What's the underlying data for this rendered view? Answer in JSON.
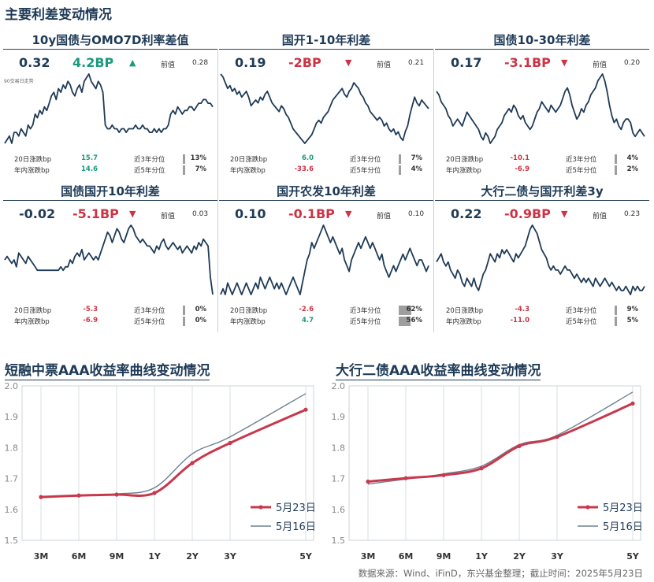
{
  "report": {
    "section1_title": "主要利差变动情况",
    "chart2_title": "短融中票AAA收益率曲线变动情况",
    "chart3_title": "大行二债AAA收益率曲线变动情况",
    "footer": "数据来源：Wind、iFinD，东兴基金整理；截止时间：2025年5月23日",
    "colors": {
      "up": "#1a9a7e",
      "down": "#cc3344",
      "line": "#1f3b57",
      "curve_new": "#c8384d",
      "curve_old": "#6f8191"
    }
  },
  "panels": [
    {
      "title": "10y国债与OMO7D利率差值",
      "current": "0.32",
      "change": "4.2BP",
      "direction": "up",
      "prev_label": "前值",
      "prev": "0.28",
      "note": "90交易日走势",
      "stats": {
        "l1": "20日涨跌bp",
        "v1": "15.7",
        "l2": "年内涨跌bp",
        "v2": "14.6",
        "q1": "近3年分位",
        "p1": "13%",
        "q2": "近5年分位",
        "p2": "7%"
      },
      "pct": [
        13,
        7
      ],
      "series": [
        0.22,
        0.23,
        0.24,
        0.22,
        0.25,
        0.25,
        0.24,
        0.26,
        0.25,
        0.24,
        0.27,
        0.26,
        0.27,
        0.3,
        0.29,
        0.31,
        0.3,
        0.32,
        0.31,
        0.33,
        0.35,
        0.36,
        0.34,
        0.37,
        0.36,
        0.38,
        0.37,
        0.39,
        0.38,
        0.36,
        0.35,
        0.37,
        0.38,
        0.36,
        0.39,
        0.4,
        0.41,
        0.39,
        0.38,
        0.37,
        0.39,
        0.38,
        0.36,
        0.27,
        0.26,
        0.26,
        0.27,
        0.26,
        0.26,
        0.25,
        0.26,
        0.26,
        0.25,
        0.26,
        0.26,
        0.26,
        0.27,
        0.26,
        0.26,
        0.27,
        0.26,
        0.26,
        0.25,
        0.25,
        0.26,
        0.25,
        0.26,
        0.25,
        0.26,
        0.26,
        0.27,
        0.3,
        0.31,
        0.3,
        0.32,
        0.31,
        0.3,
        0.31,
        0.31,
        0.32,
        0.32,
        0.31,
        0.32,
        0.33,
        0.33,
        0.34,
        0.34,
        0.33,
        0.33,
        0.32
      ]
    },
    {
      "title": "国开1-10年利差",
      "current": "0.19",
      "change": "-2BP",
      "direction": "down",
      "prev_label": "前值",
      "prev": "0.21",
      "stats": {
        "l1": "20日涨跌bp",
        "v1": "6.0",
        "l2": "年内涨跌bp",
        "v2": "-33.6",
        "q1": "近3年分位",
        "p1": "7%",
        "q2": "近5年分位",
        "p2": "4%"
      },
      "pct": [
        7,
        4
      ],
      "series": [
        0.41,
        0.4,
        0.38,
        0.36,
        0.37,
        0.35,
        0.36,
        0.34,
        0.35,
        0.33,
        0.34,
        0.35,
        0.33,
        0.3,
        0.31,
        0.32,
        0.31,
        0.33,
        0.32,
        0.34,
        0.35,
        0.33,
        0.31,
        0.3,
        0.29,
        0.28,
        0.3,
        0.29,
        0.27,
        0.26,
        0.24,
        0.22,
        0.21,
        0.2,
        0.19,
        0.18,
        0.17,
        0.18,
        0.19,
        0.2,
        0.22,
        0.24,
        0.25,
        0.24,
        0.26,
        0.27,
        0.28,
        0.3,
        0.32,
        0.33,
        0.34,
        0.35,
        0.36,
        0.34,
        0.33,
        0.35,
        0.36,
        0.38,
        0.37,
        0.36,
        0.34,
        0.33,
        0.31,
        0.3,
        0.28,
        0.27,
        0.26,
        0.25,
        0.26,
        0.25,
        0.23,
        0.24,
        0.22,
        0.21,
        0.22,
        0.2,
        0.21,
        0.19,
        0.18,
        0.21,
        0.23,
        0.27,
        0.3,
        0.33,
        0.31,
        0.3,
        0.32,
        0.31,
        0.3,
        0.29
      ]
    },
    {
      "title": "国债10-30年利差",
      "current": "0.17",
      "change": "-3.1BP",
      "direction": "down",
      "prev_label": "前值",
      "prev": "0.20",
      "stats": {
        "l1": "20日涨跌bp",
        "v1": "-10.1",
        "l2": "年内涨跌bp",
        "v2": "-6.9",
        "q1": "近3年分位",
        "p1": "4%",
        "q2": "近5年分位",
        "p2": "2%"
      },
      "pct": [
        4,
        2
      ],
      "series": [
        0.3,
        0.29,
        0.27,
        0.26,
        0.25,
        0.23,
        0.22,
        0.2,
        0.21,
        0.22,
        0.21,
        0.2,
        0.22,
        0.24,
        0.23,
        0.22,
        0.21,
        0.2,
        0.19,
        0.17,
        0.16,
        0.18,
        0.17,
        0.15,
        0.16,
        0.17,
        0.19,
        0.2,
        0.21,
        0.23,
        0.24,
        0.25,
        0.24,
        0.26,
        0.25,
        0.23,
        0.22,
        0.23,
        0.21,
        0.2,
        0.19,
        0.2,
        0.22,
        0.24,
        0.25,
        0.27,
        0.26,
        0.25,
        0.24,
        0.26,
        0.25,
        0.24,
        0.25,
        0.26,
        0.28,
        0.3,
        0.31,
        0.29,
        0.26,
        0.24,
        0.22,
        0.23,
        0.25,
        0.24,
        0.26,
        0.27,
        0.29,
        0.3,
        0.31,
        0.33,
        0.34,
        0.35,
        0.33,
        0.3,
        0.26,
        0.23,
        0.21,
        0.22,
        0.2,
        0.19,
        0.21,
        0.22,
        0.22,
        0.21,
        0.18,
        0.17,
        0.18,
        0.19,
        0.18,
        0.17
      ]
    },
    {
      "title": "国债国开10年利差",
      "current": "-0.02",
      "change": "-5.1BP",
      "direction": "down",
      "prev_label": "前值",
      "prev": "0.03",
      "stats": {
        "l1": "20日涨跌bp",
        "v1": "-5.3",
        "l2": "年内涨跌bp",
        "v2": "-6.9",
        "q1": "近3年分位",
        "p1": "0%",
        "q2": "近5年分位",
        "p2": "0%"
      },
      "pct": [
        0,
        0
      ],
      "series": [
        0.08,
        0.09,
        0.08,
        0.07,
        0.08,
        0.06,
        0.1,
        0.09,
        0.08,
        0.07,
        0.09,
        0.08,
        0.07,
        0.06,
        0.05,
        0.05,
        0.05,
        0.05,
        0.05,
        0.05,
        0.05,
        0.05,
        0.05,
        0.05,
        0.06,
        0.05,
        0.06,
        0.06,
        0.08,
        0.07,
        0.09,
        0.1,
        0.09,
        0.11,
        0.08,
        0.09,
        0.1,
        0.09,
        0.08,
        0.09,
        0.08,
        0.1,
        0.12,
        0.14,
        0.16,
        0.15,
        0.13,
        0.15,
        0.17,
        0.16,
        0.14,
        0.13,
        0.15,
        0.17,
        0.18,
        0.17,
        0.15,
        0.14,
        0.13,
        0.14,
        0.13,
        0.12,
        0.12,
        0.11,
        0.1,
        0.12,
        0.11,
        0.13,
        0.14,
        0.12,
        0.11,
        0.12,
        0.13,
        0.12,
        0.11,
        0.12,
        0.1,
        0.11,
        0.12,
        0.11,
        0.1,
        0.12,
        0.11,
        0.13,
        0.12,
        0.14,
        0.13,
        0.12,
        0.03,
        -0.02
      ]
    },
    {
      "title": "国开农发10年利差",
      "current": "0.10",
      "change": "-0.1BP",
      "direction": "down",
      "prev_label": "前值",
      "prev": "0.10",
      "stats": {
        "l1": "20日涨跌bp",
        "v1": "-2.6",
        "l2": "年内涨跌bp",
        "v2": "4.7",
        "q1": "近3年分位",
        "p1": "62%",
        "q2": "近5年分位",
        "p2": "56%"
      },
      "pct": [
        62,
        56
      ],
      "series": [
        0.05,
        0.06,
        0.05,
        0.07,
        0.06,
        0.05,
        0.06,
        0.07,
        0.06,
        0.05,
        0.06,
        0.07,
        0.06,
        0.05,
        0.06,
        0.07,
        0.06,
        0.08,
        0.07,
        0.06,
        0.07,
        0.08,
        0.07,
        0.06,
        0.07,
        0.06,
        0.07,
        0.06,
        0.05,
        0.06,
        0.07,
        0.08,
        0.07,
        0.06,
        0.05,
        0.07,
        0.09,
        0.11,
        0.12,
        0.14,
        0.13,
        0.14,
        0.15,
        0.16,
        0.17,
        0.16,
        0.15,
        0.14,
        0.15,
        0.14,
        0.13,
        0.12,
        0.13,
        0.11,
        0.1,
        0.09,
        0.11,
        0.12,
        0.13,
        0.14,
        0.13,
        0.14,
        0.15,
        0.14,
        0.13,
        0.14,
        0.13,
        0.12,
        0.11,
        0.12,
        0.1,
        0.09,
        0.08,
        0.09,
        0.1,
        0.09,
        0.1,
        0.11,
        0.12,
        0.11,
        0.12,
        0.13,
        0.12,
        0.11,
        0.1,
        0.11,
        0.11,
        0.1,
        0.09,
        0.1
      ]
    },
    {
      "title": "大行二债与国开利差3y",
      "current": "0.22",
      "change": "-0.9BP",
      "direction": "down",
      "prev_label": "前值",
      "prev": "0.23",
      "stats": {
        "l1": "20日涨跌bp",
        "v1": "-4.3",
        "l2": "年内涨跌bp",
        "v2": "-11.0",
        "q1": "近3年分位",
        "p1": "9%",
        "q2": "近5年分位",
        "p2": "5%"
      },
      "pct": [
        9,
        5
      ],
      "series": [
        0.28,
        0.29,
        0.3,
        0.28,
        0.27,
        0.28,
        0.26,
        0.25,
        0.24,
        0.26,
        0.25,
        0.23,
        0.22,
        0.24,
        0.23,
        0.22,
        0.24,
        0.22,
        0.21,
        0.23,
        0.25,
        0.26,
        0.28,
        0.3,
        0.29,
        0.28,
        0.3,
        0.29,
        0.31,
        0.3,
        0.31,
        0.3,
        0.29,
        0.28,
        0.3,
        0.29,
        0.3,
        0.31,
        0.32,
        0.34,
        0.36,
        0.37,
        0.36,
        0.35,
        0.33,
        0.31,
        0.3,
        0.29,
        0.27,
        0.26,
        0.27,
        0.26,
        0.26,
        0.25,
        0.26,
        0.27,
        0.26,
        0.26,
        0.25,
        0.24,
        0.25,
        0.24,
        0.23,
        0.24,
        0.23,
        0.24,
        0.23,
        0.22,
        0.24,
        0.23,
        0.22,
        0.23,
        0.24,
        0.23,
        0.22,
        0.23,
        0.22,
        0.21,
        0.22,
        0.21,
        0.21,
        0.22,
        0.21,
        0.2,
        0.22,
        0.21,
        0.22,
        0.21,
        0.21,
        0.22
      ]
    }
  ],
  "chart_data": [
    {
      "type": "line",
      "title": "短融中票AAA收益率曲线变动情况",
      "categories": [
        "3M",
        "6M",
        "9M",
        "1Y",
        "2Y",
        "3Y",
        "5Y"
      ],
      "x": [
        0.25,
        0.5,
        0.75,
        1,
        2,
        3,
        5
      ],
      "xpos": [
        0,
        1,
        2,
        3,
        4,
        5,
        7
      ],
      "ylim": [
        1.5,
        2.0
      ],
      "yticks": [
        "1.5",
        "1.6",
        "1.7",
        "1.8",
        "1.9",
        "2.0"
      ],
      "ytick_values": [
        1.5,
        1.6,
        1.7,
        1.8,
        1.9,
        2.0
      ],
      "legend": "bottom-right",
      "series": [
        {
          "name": "5月23日",
          "values": [
            1.64,
            1.645,
            1.648,
            1.653,
            1.75,
            1.815,
            1.923
          ],
          "markers": true
        },
        {
          "name": "5月16日",
          "values": [
            1.638,
            1.645,
            1.65,
            1.67,
            1.78,
            1.835,
            1.975
          ],
          "markers": false
        }
      ]
    },
    {
      "type": "line",
      "title": "大行二债AAA收益率曲线变动情况",
      "categories": [
        "3M",
        "6M",
        "9M",
        "1Y",
        "2Y",
        "3Y",
        "5Y"
      ],
      "x": [
        0.25,
        0.5,
        0.75,
        1,
        2,
        3,
        5
      ],
      "xpos": [
        0,
        1,
        2,
        3,
        4,
        5,
        7
      ],
      "ylim": [
        1.5,
        2.0
      ],
      "yticks": [
        "1.5",
        "1.6",
        "1.7",
        "1.8",
        "1.9",
        "2.0"
      ],
      "ytick_values": [
        1.5,
        1.6,
        1.7,
        1.8,
        1.9,
        2.0
      ],
      "legend": "bottom-right",
      "series": [
        {
          "name": "5月23日",
          "values": [
            1.69,
            1.701,
            1.711,
            1.733,
            1.805,
            1.835,
            1.943
          ],
          "markers": true
        },
        {
          "name": "5月16日",
          "values": [
            1.682,
            1.698,
            1.715,
            1.74,
            1.81,
            1.84,
            1.98
          ],
          "markers": false
        }
      ]
    }
  ]
}
